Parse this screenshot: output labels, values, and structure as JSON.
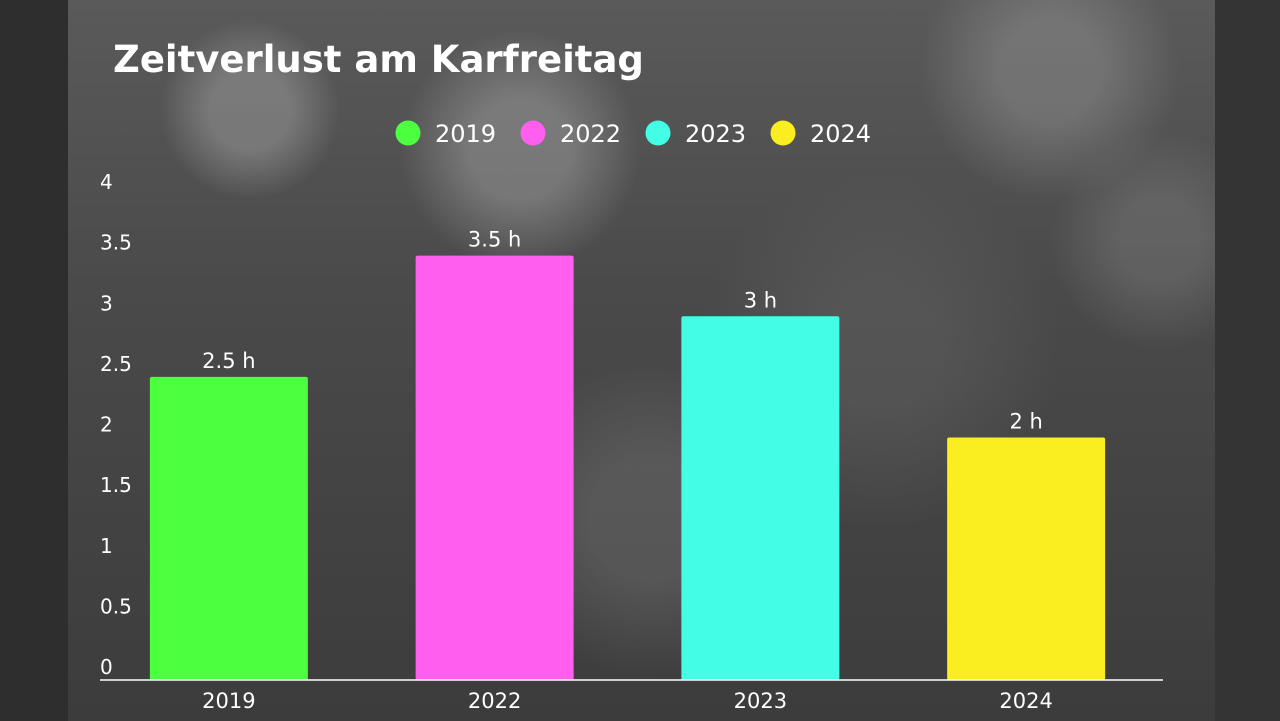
{
  "chart_data": {
    "type": "bar",
    "title": "Zeitverlust am Karfreitag",
    "xlabel": "",
    "ylabel": "",
    "ylim": [
      0,
      4
    ],
    "yticks": [
      "0",
      "0.5",
      "1",
      "1.5",
      "2",
      "2.5",
      "3",
      "3.5",
      "4"
    ],
    "categories": [
      "2019",
      "2022",
      "2023",
      "2024"
    ],
    "values": [
      2.5,
      3.5,
      3,
      2
    ],
    "data_labels": [
      "2.5 h",
      "3.5 h",
      "3 h",
      "2 h"
    ],
    "colors": [
      "#4cff3f",
      "#ff5eee",
      "#43fde7",
      "#faed20"
    ],
    "legend": [
      "2019",
      "2022",
      "2023",
      "2024"
    ],
    "legend_position": "top-center",
    "grid": false
  }
}
